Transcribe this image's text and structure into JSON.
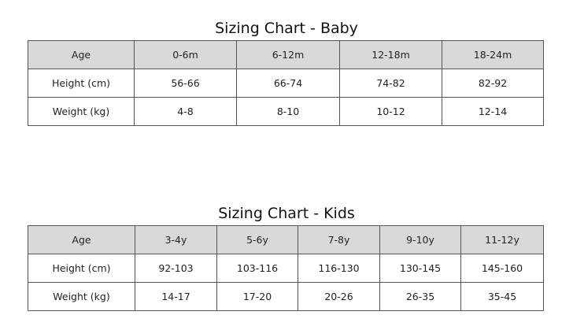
{
  "baby": {
    "title": "Sizing Chart - Baby",
    "header": [
      "Age",
      "0-6m",
      "6-12m",
      "12-18m",
      "18-24m"
    ],
    "rows": [
      [
        "Height (cm)",
        "56-66",
        "66-74",
        "74-82",
        "82-92"
      ],
      [
        "Weight (kg)",
        "4-8",
        "8-10",
        "10-12",
        "12-14"
      ]
    ]
  },
  "kids": {
    "title": "Sizing Chart - Kids",
    "header": [
      "Age",
      "3-4y",
      "5-6y",
      "7-8y",
      "9-10y",
      "11-12y"
    ],
    "rows": [
      [
        "Height (cm)",
        "92-103",
        "103-116",
        "116-130",
        "130-145",
        "145-160"
      ],
      [
        "Weight (kg)",
        "14-17",
        "17-20",
        "20-26",
        "26-35",
        "35-45"
      ]
    ]
  },
  "colors": {
    "header_bg": "#d9d9d9",
    "border": "#555555"
  }
}
